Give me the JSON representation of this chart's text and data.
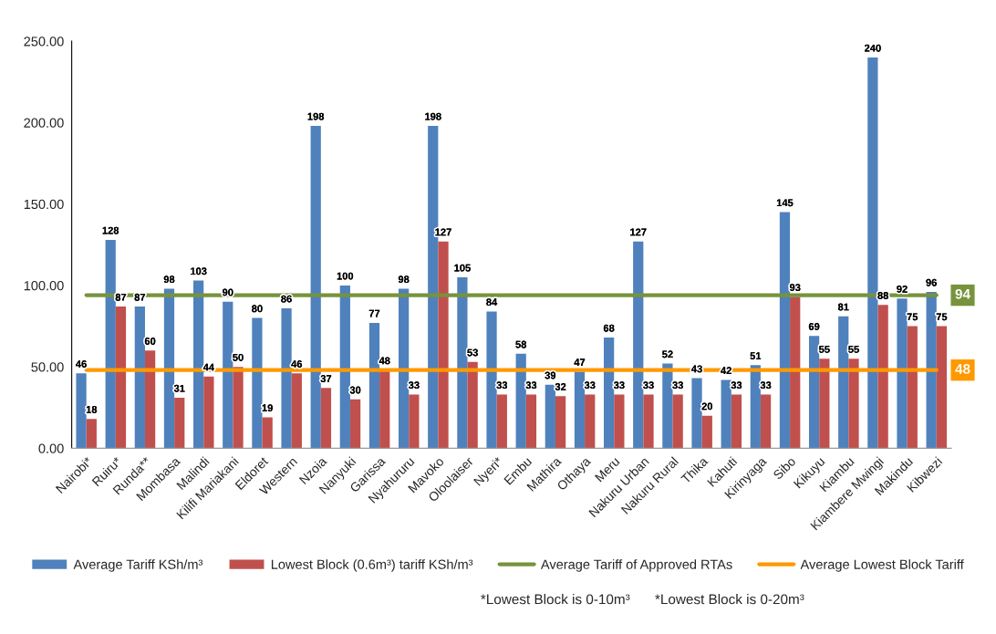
{
  "chart_data": {
    "type": "bar",
    "categories": [
      "Nairobi*",
      "Ruiru*",
      "Runda**",
      "Mombasa",
      "Malindi",
      "Kilifi Mariakani",
      "Eldoret",
      "Western",
      "Nzoia",
      "Nanyuki",
      "Garissa",
      "Nyahururu",
      "Mavoko",
      "Oloolaiser",
      "Nyeri*",
      "Embu",
      "Mathira",
      "Othaya",
      "Meru",
      "Nakuru Urban",
      "Nakuru Rural",
      "Thika",
      "Kahuti",
      "Kirinyaga",
      "Sibo",
      "Kikuyu",
      "Kiambu",
      "Kiambere Mwingi",
      "Makindu",
      "Kibwezi"
    ],
    "series": [
      {
        "name": "Average Tariff KSh/m³",
        "color": "#4f81bd",
        "values": [
          46,
          128,
          87,
          98,
          103,
          90,
          80,
          86,
          198,
          100,
          77,
          98,
          198,
          105,
          84,
          58,
          39,
          47,
          68,
          127,
          52,
          43,
          42,
          51,
          145,
          69,
          81,
          240,
          92,
          96
        ]
      },
      {
        "name": "Lowest Block (0.6m³) tariff KSh/m³",
        "color": "#c0504d",
        "values": [
          18,
          87,
          60,
          31,
          44,
          50,
          19,
          46,
          37,
          30,
          48,
          33,
          127,
          53,
          33,
          33,
          32,
          33,
          33,
          33,
          33,
          20,
          33,
          33,
          93,
          55,
          55,
          88,
          75,
          75
        ]
      },
      {
        "type": "line",
        "name": "Average Tariff of Approved RTAs",
        "color": "#77933c",
        "values": [
          94,
          94,
          94,
          94,
          94,
          94,
          94,
          94,
          94,
          94,
          94,
          94,
          94,
          94,
          94,
          94,
          94,
          94,
          94,
          94,
          94,
          94,
          94,
          94,
          94,
          94,
          94,
          94,
          94,
          94
        ],
        "value_labels": [
          null,
          null,
          null,
          null,
          null,
          null,
          null,
          null,
          null,
          null,
          null,
          null,
          null,
          null,
          null,
          null,
          null,
          null,
          null,
          null,
          null,
          null,
          null,
          null,
          null,
          null,
          null,
          null,
          null,
          "94"
        ]
      },
      {
        "type": "line",
        "name": "Average Lowest Block Tariff",
        "color": "#ff9900",
        "values": [
          48,
          48,
          48,
          48,
          48,
          48,
          48,
          48,
          48,
          48,
          48,
          48,
          48,
          48,
          48,
          48,
          48,
          48,
          48,
          48,
          48,
          48,
          48,
          48,
          48,
          48,
          48,
          48,
          48,
          48
        ],
        "value_labels": [
          null,
          null,
          null,
          null,
          null,
          null,
          null,
          null,
          null,
          null,
          null,
          null,
          null,
          null,
          null,
          null,
          null,
          null,
          null,
          null,
          null,
          null,
          null,
          null,
          null,
          null,
          null,
          null,
          null,
          "48"
        ]
      }
    ],
    "ylim": [
      0,
      250
    ],
    "yticks": [
      {
        "value": 0,
        "label": "0.00"
      },
      {
        "value": 50,
        "label": "50.00"
      },
      {
        "value": 100,
        "label": "100.00"
      },
      {
        "value": 150,
        "label": "150.00"
      },
      {
        "value": 200,
        "label": "200.00"
      },
      {
        "value": 250,
        "label": "250.00"
      }
    ],
    "grid": false,
    "legend": "bottom",
    "data_labels": true,
    "annotations": [
      "*Lowest Block is 0-10m³",
      "*Lowest Block is 0-20m³"
    ]
  }
}
